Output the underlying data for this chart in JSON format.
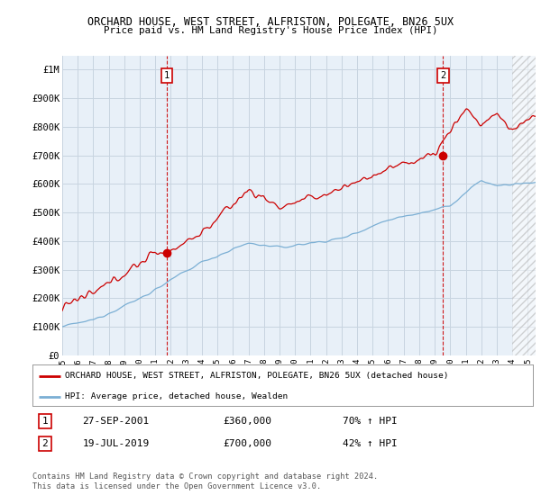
{
  "title": "ORCHARD HOUSE, WEST STREET, ALFRISTON, POLEGATE, BN26 5UX",
  "subtitle": "Price paid vs. HM Land Registry's House Price Index (HPI)",
  "red_label": "ORCHARD HOUSE, WEST STREET, ALFRISTON, POLEGATE, BN26 5UX (detached house)",
  "blue_label": "HPI: Average price, detached house, Wealden",
  "annotation1_date": "27-SEP-2001",
  "annotation1_price": "£360,000",
  "annotation1_hpi": "70% ↑ HPI",
  "annotation2_date": "19-JUL-2019",
  "annotation2_price": "£700,000",
  "annotation2_hpi": "42% ↑ HPI",
  "footer": "Contains HM Land Registry data © Crown copyright and database right 2024.\nThis data is licensed under the Open Government Licence v3.0.",
  "ylim": [
    0,
    1050000
  ],
  "yticks": [
    0,
    100000,
    200000,
    300000,
    400000,
    500000,
    600000,
    700000,
    800000,
    900000,
    1000000
  ],
  "ytick_labels": [
    "£0",
    "£100K",
    "£200K",
    "£300K",
    "£400K",
    "£500K",
    "£600K",
    "£700K",
    "£800K",
    "£900K",
    "£1M"
  ],
  "red_color": "#cc0000",
  "blue_color": "#7bafd4",
  "chart_bg": "#e8f0f8",
  "background_color": "#ffffff",
  "grid_color": "#c8d4e0",
  "sale1_x": 2001.74,
  "sale1_y": 360000,
  "sale2_x": 2019.54,
  "sale2_y": 700000,
  "xmin": 1995,
  "xmax": 2025.5,
  "hatch_start": 2024.0
}
